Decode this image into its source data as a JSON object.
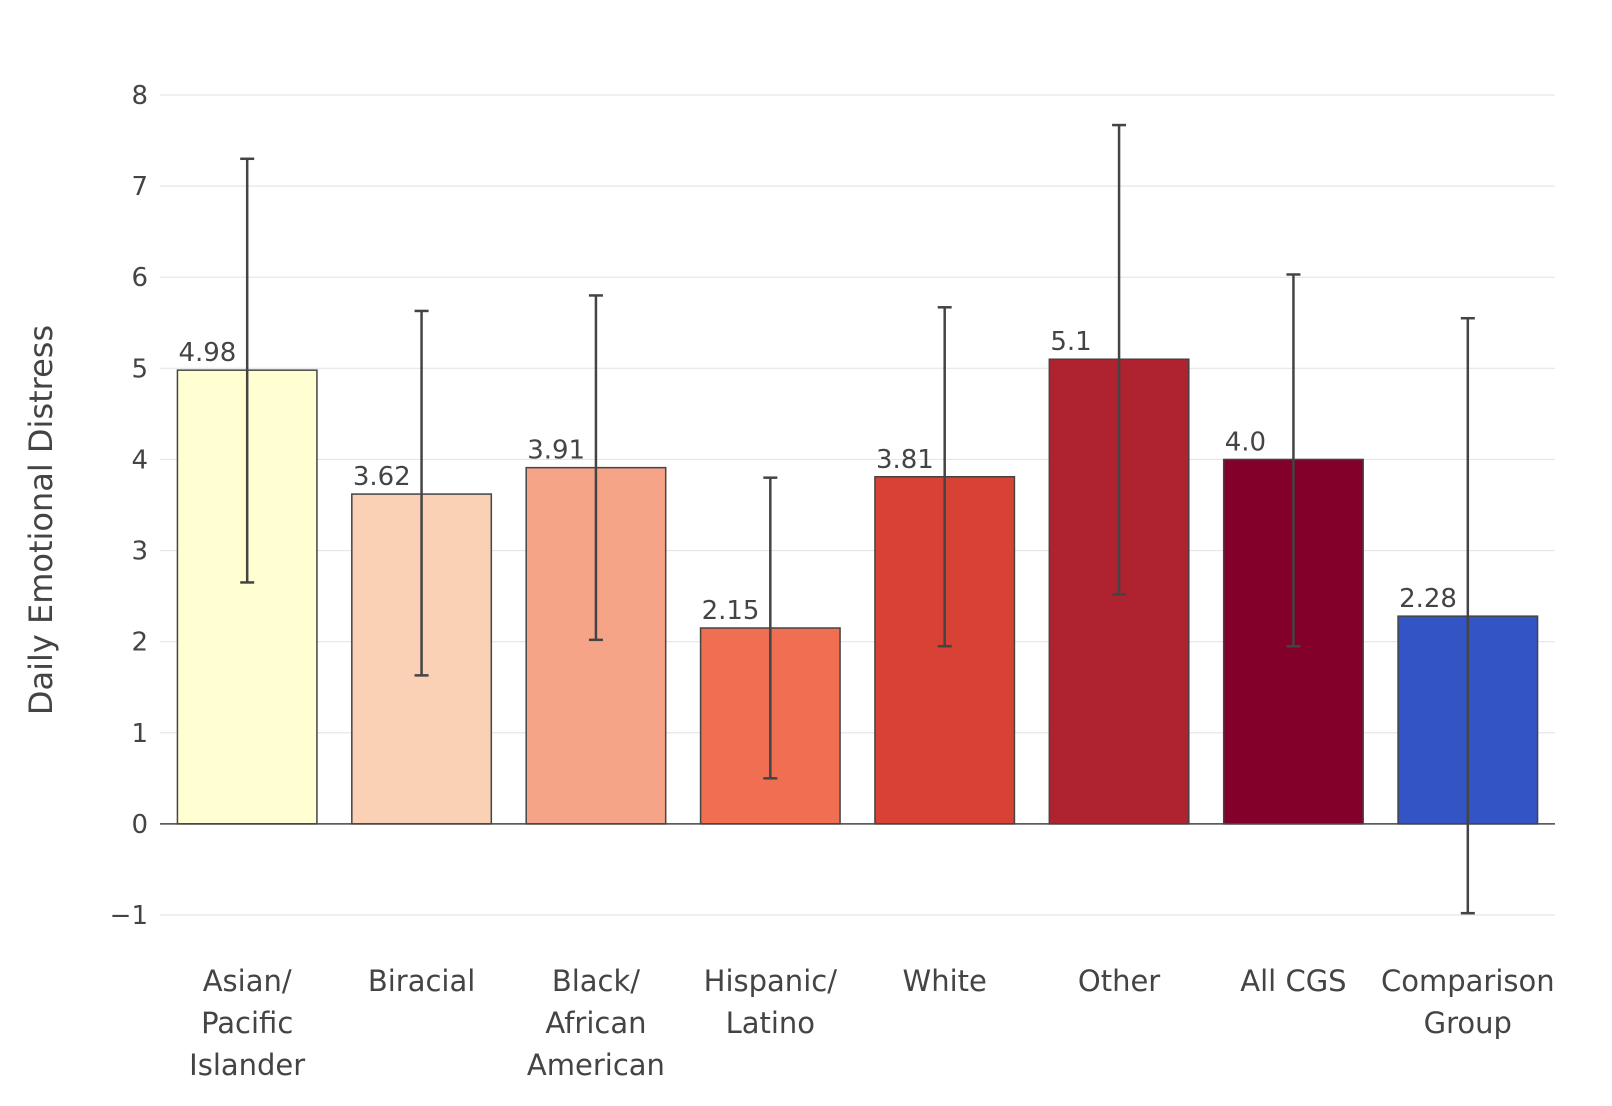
{
  "chart_data": {
    "type": "bar",
    "ylabel": "Daily Emotional Distress",
    "ylim": [
      -1,
      8
    ],
    "yticks": [
      "−1",
      "0",
      "1",
      "2",
      "3",
      "4",
      "5",
      "6",
      "7",
      "8"
    ],
    "grid": true,
    "categories": [
      [
        "Asian/",
        "Pacific",
        "Islander"
      ],
      [
        "Biracial"
      ],
      [
        "Black/",
        "African",
        "American"
      ],
      [
        "Hispanic/",
        "Latino"
      ],
      [
        "White"
      ],
      [
        "Other"
      ],
      [
        "All CGS"
      ],
      [
        "Comparison",
        "Group"
      ]
    ],
    "values": [
      4.98,
      3.62,
      3.91,
      2.15,
      3.81,
      5.1,
      4.0,
      2.28
    ],
    "value_labels": [
      "4.98",
      "3.62",
      "3.91",
      "2.15",
      "3.81",
      "5.1",
      "4.0",
      "2.28"
    ],
    "error_low": [
      2.65,
      1.63,
      2.02,
      0.5,
      1.95,
      2.52,
      1.95,
      -0.98
    ],
    "error_high": [
      7.3,
      5.63,
      5.8,
      3.8,
      5.67,
      7.67,
      6.03,
      5.55
    ],
    "colors": [
      "#FFFFD2",
      "#FAD1B4",
      "#F6A487",
      "#F06E51",
      "#D74234",
      "#AF2230",
      "#83002A",
      "#3354C5"
    ]
  }
}
